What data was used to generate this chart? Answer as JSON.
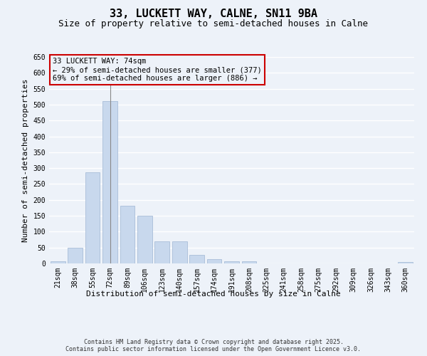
{
  "title": "33, LUCKETT WAY, CALNE, SN11 9BA",
  "subtitle": "Size of property relative to semi-detached houses in Calne",
  "xlabel": "Distribution of semi-detached houses by size in Calne",
  "ylabel": "Number of semi-detached properties",
  "footer": "Contains HM Land Registry data © Crown copyright and database right 2025.\nContains public sector information licensed under the Open Government Licence v3.0.",
  "categories": [
    "21sqm",
    "38sqm",
    "55sqm",
    "72sqm",
    "89sqm",
    "106sqm",
    "123sqm",
    "140sqm",
    "157sqm",
    "174sqm",
    "191sqm",
    "208sqm",
    "225sqm",
    "241sqm",
    "258sqm",
    "275sqm",
    "292sqm",
    "309sqm",
    "326sqm",
    "343sqm",
    "360sqm"
  ],
  "values": [
    7,
    50,
    288,
    511,
    181,
    150,
    69,
    69,
    27,
    13,
    7,
    7,
    0,
    0,
    0,
    0,
    0,
    0,
    0,
    0,
    5
  ],
  "bar_color": "#c8d8ed",
  "bar_edge_color": "#a8bdd8",
  "highlight_index": 3,
  "highlight_line_color": "#888888",
  "ylim_max": 650,
  "yticks": [
    0,
    50,
    100,
    150,
    200,
    250,
    300,
    350,
    400,
    450,
    500,
    550,
    600,
    650
  ],
  "annotation_line1": "33 LUCKETT WAY: 74sqm",
  "annotation_line2": "← 29% of semi-detached houses are smaller (377)",
  "annotation_line3": "69% of semi-detached houses are larger (886) →",
  "annotation_box_edgecolor": "#cc0000",
  "background_color": "#edf2f9",
  "grid_color": "#ffffff",
  "title_fontsize": 11,
  "subtitle_fontsize": 9,
  "axis_label_fontsize": 8,
  "tick_fontsize": 7,
  "annotation_fontsize": 7.5,
  "footer_fontsize": 6
}
